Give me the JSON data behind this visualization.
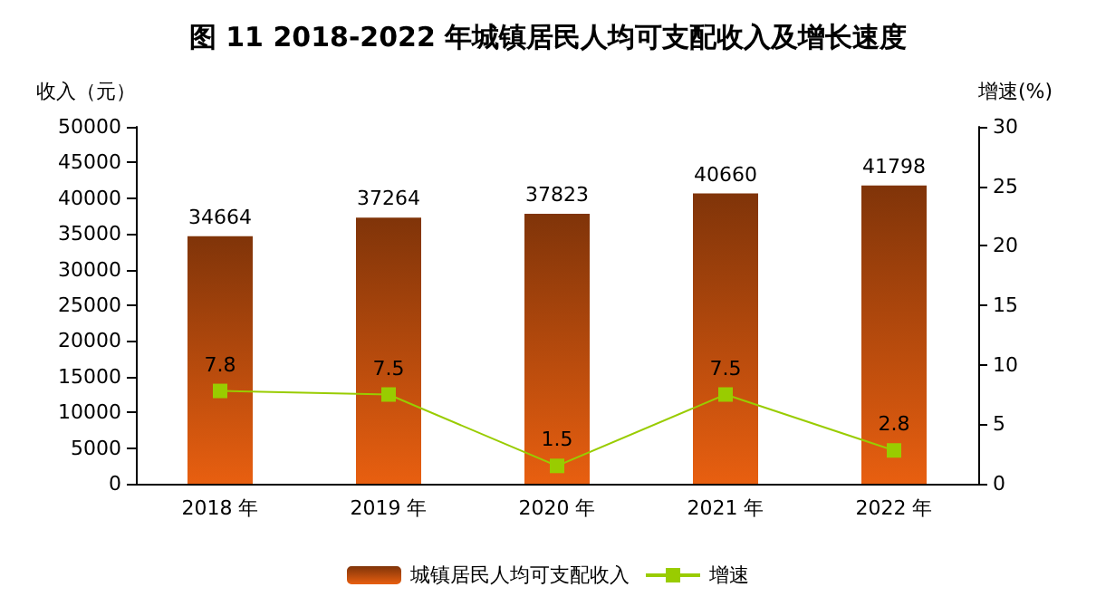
{
  "chart_data": {
    "type": "bar",
    "title": "图 11 2018-2022 年城镇居民人均可支配收入及增长速度",
    "ylabel": "收入（元）",
    "y2label": "增速(%)",
    "categories": [
      "2018 年",
      "2019 年",
      "2020 年",
      "2021 年",
      "2022 年"
    ],
    "series": [
      {
        "name": "城镇居民人均可支配收入",
        "color": "#e85f10",
        "values": [
          34664,
          37264,
          37823,
          40660,
          41798
        ]
      },
      {
        "name": "增速",
        "type": "line",
        "axis": "y2",
        "color": "#99cc00",
        "marker": "square",
        "values": [
          7.8,
          7.5,
          1.5,
          7.5,
          2.8
        ]
      }
    ],
    "ylim": [
      0,
      50000
    ],
    "yticks": [
      0,
      5000,
      10000,
      15000,
      20000,
      25000,
      30000,
      35000,
      40000,
      45000,
      50000
    ],
    "y2lim": [
      0,
      30
    ],
    "y2ticks": [
      0,
      5,
      10,
      15,
      20,
      25,
      30
    ],
    "data_labels": true,
    "grid": false,
    "legend": "bottom"
  }
}
